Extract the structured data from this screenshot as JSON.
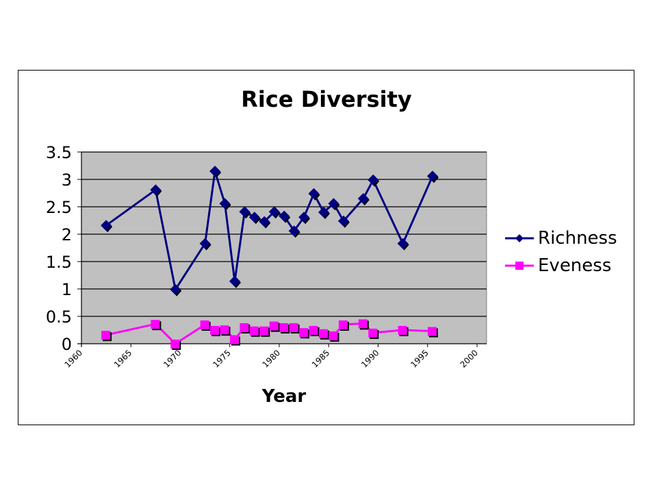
{
  "chart_data": {
    "type": "line",
    "title": "Rice Diversity",
    "xlabel": "Year",
    "ylabel": "",
    "xlim": [
      1960,
      2000
    ],
    "ylim": [
      0,
      3.5
    ],
    "x_ticks": [
      "1960",
      "1965",
      "1970",
      "1975",
      "1980",
      "1985",
      "1990",
      "1995",
      "2000"
    ],
    "y_ticks": [
      "0",
      "0.5",
      "1",
      "1.5",
      "2",
      "2.5",
      "3",
      "3.5"
    ],
    "grid": true,
    "legend_position": "right",
    "x": [
      1963,
      1968,
      1970,
      1973,
      1974,
      1975,
      1976,
      1977,
      1978,
      1979,
      1980,
      1981,
      1982,
      1983,
      1984,
      1985,
      1986,
      1987,
      1989,
      1990,
      1993,
      1996
    ],
    "series": [
      {
        "name": "Richness",
        "color": "#000080",
        "marker": "diamond",
        "values": [
          2.16,
          2.81,
          0.99,
          1.83,
          3.15,
          2.56,
          1.14,
          2.41,
          2.31,
          2.23,
          2.41,
          2.33,
          2.06,
          2.31,
          2.74,
          2.4,
          2.56,
          2.24,
          2.65,
          2.99,
          1.83,
          3.06
        ]
      },
      {
        "name": "Eveness",
        "color": "#FF00FF",
        "marker": "square",
        "values": [
          0.16,
          0.36,
          0.0,
          0.35,
          0.25,
          0.26,
          0.08,
          0.3,
          0.24,
          0.24,
          0.33,
          0.3,
          0.3,
          0.21,
          0.25,
          0.19,
          0.15,
          0.35,
          0.37,
          0.2,
          0.25,
          0.23
        ]
      }
    ]
  },
  "colors": {
    "plot_background": "#C0C0C0",
    "gridline": "#000000",
    "richness": "#000080",
    "eveness": "#FF00FF"
  }
}
